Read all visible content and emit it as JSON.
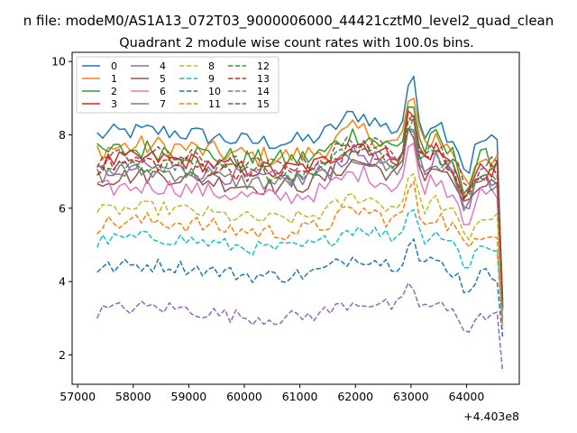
{
  "figure": {
    "suptitle": "n file: modeM0/AS1A13_072T03_9000006000_44421cztM0_level2_quad_clean",
    "title": "Quadrant 2 module wise count rates with 100.0s bins.",
    "x_offset_label": "+4.403e8"
  },
  "chart_data": {
    "type": "line",
    "title": "Quadrant 2 module wise count rates with 100.0s bins.",
    "xlabel": "",
    "ylabel": "",
    "x_offset": 440300000,
    "xlim": [
      56900,
      64950
    ],
    "ylim": [
      1.2,
      10.25
    ],
    "x_ticks": [
      57000,
      58000,
      59000,
      60000,
      61000,
      62000,
      63000,
      64000
    ],
    "y_ticks": [
      2,
      4,
      6,
      8,
      10
    ],
    "grid": false,
    "legend": {
      "location": "upper-left",
      "columns": 4
    },
    "x_start": 57350,
    "x_step": 100,
    "x_last": 64650,
    "series": [
      {
        "name": "0",
        "color": "#1f77b4",
        "dash": "solid",
        "base": 7.95,
        "noise": 0.25,
        "end": 3.4
      },
      {
        "name": "1",
        "color": "#ff7f0e",
        "dash": "solid",
        "base": 7.55,
        "noise": 0.3,
        "end": 3.3
      },
      {
        "name": "2",
        "color": "#2ca02c",
        "dash": "solid",
        "base": 7.45,
        "noise": 0.3,
        "end": 3.5
      },
      {
        "name": "3",
        "color": "#d62728",
        "dash": "solid",
        "base": 7.2,
        "noise": 0.25,
        "end": 3.3
      },
      {
        "name": "4",
        "color": "#9467bd",
        "dash": "solid",
        "base": 6.95,
        "noise": 0.25,
        "end": 3.2
      },
      {
        "name": "5",
        "color": "#8c564b",
        "dash": "solid",
        "base": 6.75,
        "noise": 0.25,
        "end": 3.3
      },
      {
        "name": "6",
        "color": "#e377c2",
        "dash": "solid",
        "base": 6.45,
        "noise": 0.25,
        "end": 3.0
      },
      {
        "name": "7",
        "color": "#7f7f7f",
        "dash": "solid",
        "base": 6.85,
        "noise": 0.25,
        "end": 3.2
      },
      {
        "name": "8",
        "color": "#bcbd22",
        "dash": "dashed",
        "base": 5.85,
        "noise": 0.2,
        "end": 2.9
      },
      {
        "name": "9",
        "color": "#17becf",
        "dash": "dashed",
        "base": 5.05,
        "noise": 0.2,
        "end": 2.8
      },
      {
        "name": "10",
        "color": "#1f77b4",
        "dash": "dashed",
        "base": 4.3,
        "noise": 0.2,
        "end": 2.5
      },
      {
        "name": "11",
        "color": "#ff7f0e",
        "dash": "dashed",
        "base": 5.5,
        "noise": 0.25,
        "end": 2.7
      },
      {
        "name": "12",
        "color": "#2ca02c",
        "dash": "dashed",
        "base": 7.05,
        "noise": 0.25,
        "end": 3.3
      },
      {
        "name": "13",
        "color": "#d62728",
        "dash": "dashed",
        "base": 7.1,
        "noise": 0.25,
        "end": 3.4
      },
      {
        "name": "14",
        "color": "#9467bd",
        "dash": "dashed",
        "base": 3.15,
        "noise": 0.2,
        "end": 1.55
      },
      {
        "name": "15",
        "color": "#8c564b",
        "dash": "dashed",
        "base": 7.3,
        "noise": 0.25,
        "end": 3.6
      }
    ]
  }
}
